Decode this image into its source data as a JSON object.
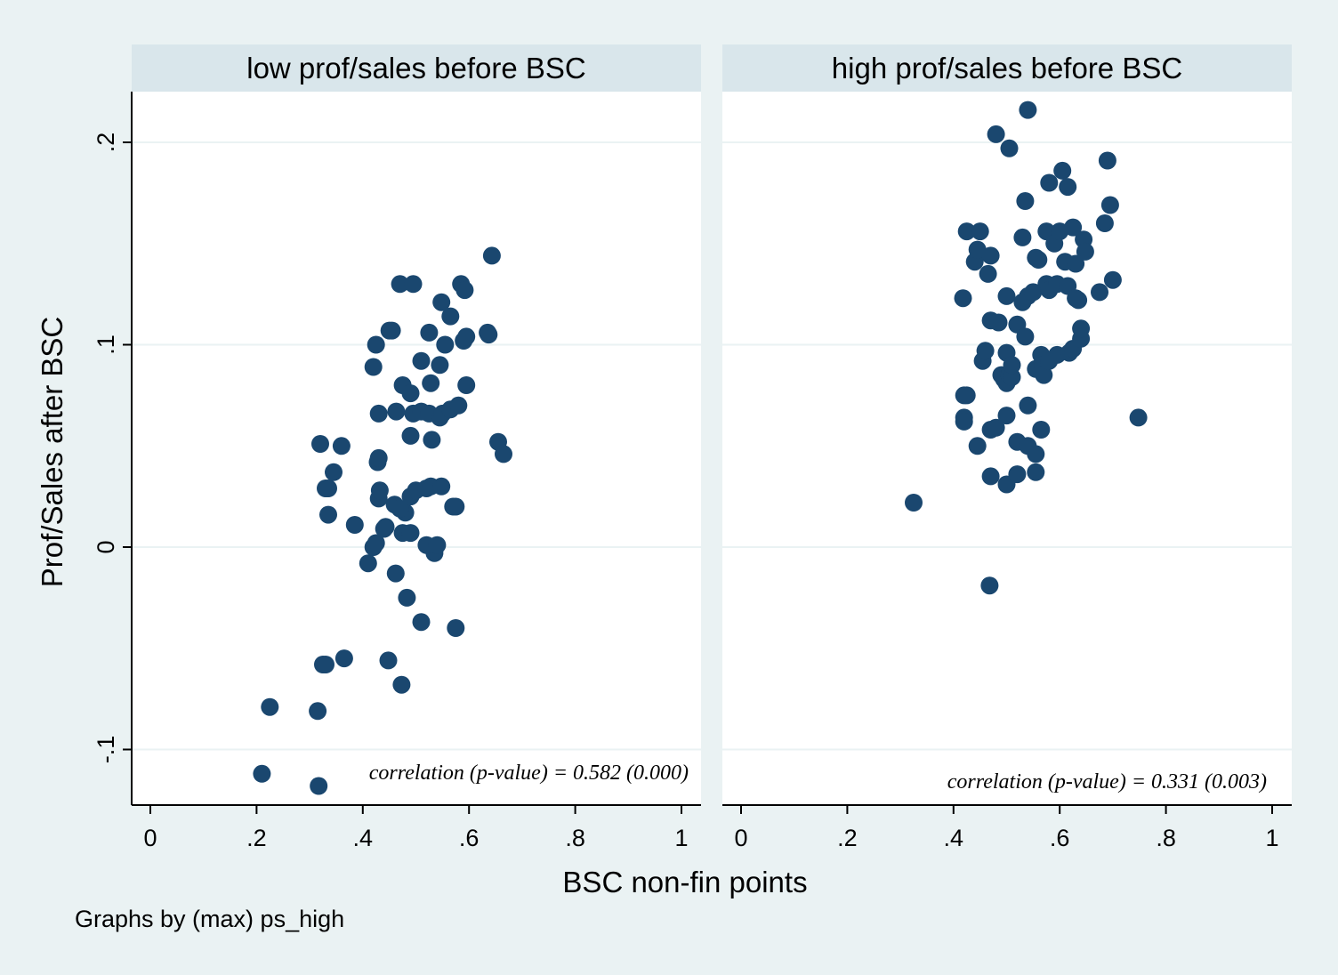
{
  "colors": {
    "background": "#eaf2f3",
    "panel": "#ffffff",
    "strip": "#d9e6eb",
    "gridline": "#eaf2f3",
    "marker": "#1a476f",
    "axis": "#000000"
  },
  "note": "Graphs by (max) ps_high",
  "chart_data": {
    "type": "scatter",
    "xlabel": "BSC non-fin points",
    "ylabel": "Prof/Sales after BSC",
    "xlim": [
      0,
      1
    ],
    "ylim": [
      -0.128,
      0.225
    ],
    "x_ticks": [
      {
        "value": 0,
        "label": "0"
      },
      {
        "value": 0.2,
        "label": ".2"
      },
      {
        "value": 0.4,
        "label": ".4"
      },
      {
        "value": 0.6,
        "label": ".6"
      },
      {
        "value": 0.8,
        "label": ".8"
      },
      {
        "value": 1,
        "label": "1"
      }
    ],
    "y_ticks": [
      {
        "value": -0.1,
        "label": "-.1"
      },
      {
        "value": 0,
        "label": "0"
      },
      {
        "value": 0.1,
        "label": ".1"
      },
      {
        "value": 0.2,
        "label": ".2"
      }
    ],
    "grid": true,
    "panels": [
      {
        "title": "low prof/sales before BSC",
        "annotation": "correlation (p-value) = 0.582 (0.000)",
        "points": [
          [
            0.21,
            -0.112
          ],
          [
            0.225,
            -0.079
          ],
          [
            0.315,
            -0.081
          ],
          [
            0.317,
            -0.118
          ],
          [
            0.325,
            -0.058
          ],
          [
            0.33,
            -0.058
          ],
          [
            0.365,
            -0.055
          ],
          [
            0.448,
            -0.056
          ],
          [
            0.473,
            -0.068
          ],
          [
            0.51,
            -0.037
          ],
          [
            0.575,
            -0.04
          ],
          [
            0.483,
            -0.025
          ],
          [
            0.462,
            -0.013
          ],
          [
            0.41,
            -0.008
          ],
          [
            0.535,
            -0.003
          ],
          [
            0.42,
            0.0
          ],
          [
            0.425,
            0.002
          ],
          [
            0.52,
            0.001
          ],
          [
            0.54,
            0.001
          ],
          [
            0.475,
            0.007
          ],
          [
            0.49,
            0.007
          ],
          [
            0.44,
            0.009
          ],
          [
            0.443,
            0.01
          ],
          [
            0.385,
            0.011
          ],
          [
            0.335,
            0.016
          ],
          [
            0.48,
            0.017
          ],
          [
            0.46,
            0.021
          ],
          [
            0.47,
            0.019
          ],
          [
            0.575,
            0.02
          ],
          [
            0.57,
            0.02
          ],
          [
            0.43,
            0.024
          ],
          [
            0.432,
            0.028
          ],
          [
            0.49,
            0.025
          ],
          [
            0.5,
            0.028
          ],
          [
            0.52,
            0.029
          ],
          [
            0.528,
            0.03
          ],
          [
            0.548,
            0.03
          ],
          [
            0.33,
            0.029
          ],
          [
            0.335,
            0.029
          ],
          [
            0.345,
            0.037
          ],
          [
            0.428,
            0.042
          ],
          [
            0.43,
            0.044
          ],
          [
            0.32,
            0.051
          ],
          [
            0.36,
            0.05
          ],
          [
            0.53,
            0.053
          ],
          [
            0.49,
            0.055
          ],
          [
            0.655,
            0.052
          ],
          [
            0.665,
            0.046
          ],
          [
            0.43,
            0.066
          ],
          [
            0.463,
            0.067
          ],
          [
            0.495,
            0.066
          ],
          [
            0.51,
            0.067
          ],
          [
            0.525,
            0.066
          ],
          [
            0.545,
            0.064
          ],
          [
            0.55,
            0.066
          ],
          [
            0.565,
            0.068
          ],
          [
            0.58,
            0.07
          ],
          [
            0.475,
            0.08
          ],
          [
            0.49,
            0.076
          ],
          [
            0.528,
            0.081
          ],
          [
            0.595,
            0.08
          ],
          [
            0.42,
            0.089
          ],
          [
            0.51,
            0.092
          ],
          [
            0.545,
            0.09
          ],
          [
            0.425,
            0.1
          ],
          [
            0.555,
            0.1
          ],
          [
            0.59,
            0.102
          ],
          [
            0.595,
            0.104
          ],
          [
            0.45,
            0.107
          ],
          [
            0.455,
            0.107
          ],
          [
            0.525,
            0.106
          ],
          [
            0.635,
            0.106
          ],
          [
            0.637,
            0.105
          ],
          [
            0.565,
            0.114
          ],
          [
            0.548,
            0.121
          ],
          [
            0.47,
            0.13
          ],
          [
            0.495,
            0.13
          ],
          [
            0.585,
            0.13
          ],
          [
            0.592,
            0.127
          ],
          [
            0.643,
            0.144
          ]
        ]
      },
      {
        "title": "high prof/sales before BSC",
        "annotation": "correlation (p-value) = 0.331 (0.003)",
        "points": [
          [
            0.325,
            0.022
          ],
          [
            0.468,
            -0.019
          ],
          [
            0.748,
            0.064
          ],
          [
            0.42,
            0.064
          ],
          [
            0.42,
            0.062
          ],
          [
            0.445,
            0.05
          ],
          [
            0.47,
            0.058
          ],
          [
            0.48,
            0.059
          ],
          [
            0.47,
            0.035
          ],
          [
            0.5,
            0.031
          ],
          [
            0.52,
            0.036
          ],
          [
            0.555,
            0.037
          ],
          [
            0.52,
            0.052
          ],
          [
            0.54,
            0.05
          ],
          [
            0.555,
            0.046
          ],
          [
            0.565,
            0.058
          ],
          [
            0.5,
            0.065
          ],
          [
            0.54,
            0.07
          ],
          [
            0.425,
            0.075
          ],
          [
            0.42,
            0.075
          ],
          [
            0.49,
            0.085
          ],
          [
            0.495,
            0.083
          ],
          [
            0.5,
            0.081
          ],
          [
            0.505,
            0.085
          ],
          [
            0.51,
            0.084
          ],
          [
            0.455,
            0.092
          ],
          [
            0.46,
            0.097
          ],
          [
            0.5,
            0.096
          ],
          [
            0.51,
            0.09
          ],
          [
            0.555,
            0.088
          ],
          [
            0.565,
            0.095
          ],
          [
            0.568,
            0.09
          ],
          [
            0.57,
            0.085
          ],
          [
            0.58,
            0.092
          ],
          [
            0.595,
            0.095
          ],
          [
            0.618,
            0.096
          ],
          [
            0.625,
            0.098
          ],
          [
            0.64,
            0.103
          ],
          [
            0.64,
            0.108
          ],
          [
            0.47,
            0.112
          ],
          [
            0.485,
            0.111
          ],
          [
            0.52,
            0.11
          ],
          [
            0.535,
            0.104
          ],
          [
            0.418,
            0.123
          ],
          [
            0.5,
            0.124
          ],
          [
            0.53,
            0.121
          ],
          [
            0.54,
            0.124
          ],
          [
            0.55,
            0.126
          ],
          [
            0.575,
            0.13
          ],
          [
            0.58,
            0.127
          ],
          [
            0.595,
            0.13
          ],
          [
            0.615,
            0.129
          ],
          [
            0.63,
            0.123
          ],
          [
            0.635,
            0.122
          ],
          [
            0.675,
            0.126
          ],
          [
            0.7,
            0.132
          ],
          [
            0.44,
            0.141
          ],
          [
            0.465,
            0.135
          ],
          [
            0.47,
            0.144
          ],
          [
            0.445,
            0.147
          ],
          [
            0.425,
            0.156
          ],
          [
            0.45,
            0.156
          ],
          [
            0.53,
            0.153
          ],
          [
            0.555,
            0.143
          ],
          [
            0.56,
            0.142
          ],
          [
            0.575,
            0.156
          ],
          [
            0.59,
            0.15
          ],
          [
            0.6,
            0.156
          ],
          [
            0.61,
            0.141
          ],
          [
            0.625,
            0.158
          ],
          [
            0.63,
            0.14
          ],
          [
            0.645,
            0.152
          ],
          [
            0.648,
            0.146
          ],
          [
            0.685,
            0.16
          ],
          [
            0.695,
            0.169
          ],
          [
            0.535,
            0.171
          ],
          [
            0.58,
            0.18
          ],
          [
            0.605,
            0.186
          ],
          [
            0.615,
            0.178
          ],
          [
            0.69,
            0.191
          ],
          [
            0.48,
            0.204
          ],
          [
            0.505,
            0.197
          ],
          [
            0.54,
            0.216
          ]
        ]
      }
    ]
  }
}
